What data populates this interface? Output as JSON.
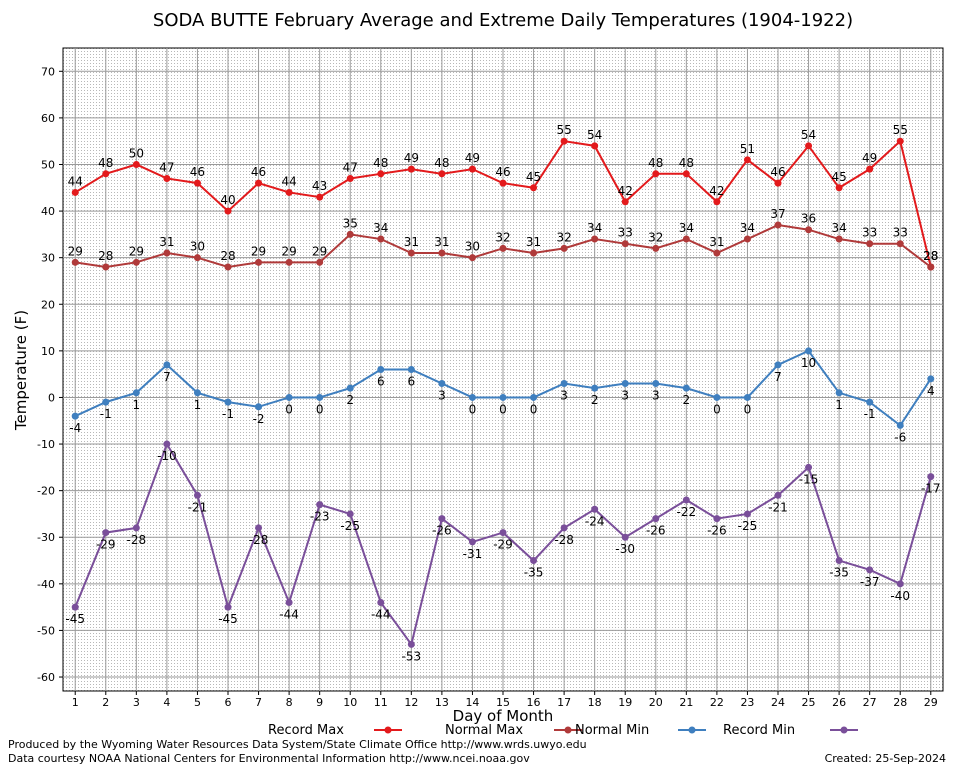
{
  "chart_data": {
    "type": "line",
    "title": "SODA BUTTE February Average and Extreme Daily Temperatures (1904-1922)",
    "xlabel": "Day of Month",
    "ylabel": "Temperature (F)",
    "ylim": [
      -63,
      75
    ],
    "yticks": [
      70,
      60,
      50,
      40,
      30,
      20,
      10,
      0,
      -10,
      -20,
      -30,
      -40,
      -50,
      -60
    ],
    "x": [
      1,
      2,
      3,
      4,
      5,
      6,
      7,
      8,
      9,
      10,
      11,
      12,
      13,
      14,
      15,
      16,
      17,
      18,
      19,
      20,
      21,
      22,
      23,
      24,
      25,
      26,
      27,
      28,
      29
    ],
    "grid": true,
    "legend_position": "bottom",
    "series": [
      {
        "name": "Record Max",
        "color": "#e31a1c",
        "label_side": "above",
        "values": [
          44,
          48,
          50,
          47,
          46,
          40,
          46,
          44,
          43,
          47,
          48,
          49,
          48,
          49,
          46,
          45,
          55,
          54,
          42,
          48,
          48,
          42,
          51,
          46,
          54,
          45,
          49,
          55,
          28
        ]
      },
      {
        "name": "Normal Max",
        "color": "#b03a3a",
        "label_side": "above",
        "values": [
          29,
          28,
          29,
          31,
          30,
          28,
          29,
          29,
          29,
          35,
          34,
          31,
          31,
          30,
          32,
          31,
          32,
          34,
          33,
          32,
          34,
          31,
          34,
          37,
          36,
          34,
          33,
          33,
          28
        ]
      },
      {
        "name": "Normal Min",
        "color": "#3f7fbf",
        "label_side": "below",
        "values": [
          -4,
          -1,
          1,
          7,
          1,
          -1,
          -2,
          0,
          0,
          2,
          6,
          6,
          3,
          0,
          0,
          0,
          3,
          2,
          3,
          3,
          2,
          0,
          0,
          7,
          10,
          1,
          -1,
          -6,
          4
        ]
      },
      {
        "name": "Record Min",
        "color": "#7a4f9a",
        "label_side": "below",
        "values": [
          -45,
          -29,
          -28,
          -10,
          -21,
          -45,
          -28,
          -44,
          -23,
          -25,
          -44,
          -53,
          -26,
          -31,
          -29,
          -35,
          -28,
          -24,
          -30,
          -26,
          -22,
          -26,
          -25,
          -21,
          -15,
          -35,
          -37,
          -40,
          -17
        ]
      }
    ]
  },
  "footer": {
    "produced_by": "Produced by the Wyoming Water Resources Data System/State Climate Office http://www.wrds.uwyo.edu",
    "courtesy": "Data courtesy NOAA National Centers for Environmental Information http://www.ncei.noaa.gov",
    "created": "Created: 25-Sep-2024"
  }
}
